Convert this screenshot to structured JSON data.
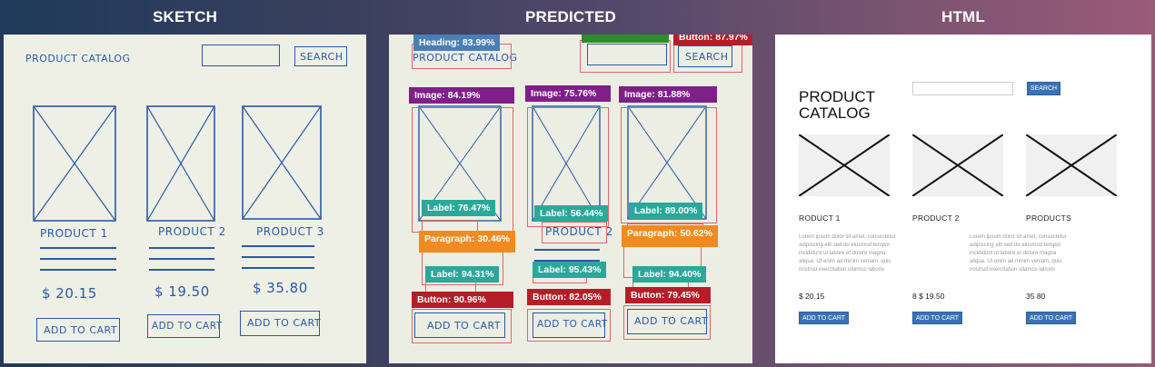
{
  "headers": {
    "sketch": "SKETCH",
    "predicted": "PREDICTED",
    "html": "HTML"
  },
  "sketch": {
    "title": "PRODUCT CATALOG",
    "search_button": "SEARCH",
    "products": [
      {
        "name": "PRODUCT 1",
        "price": "$ 20.15",
        "button": "ADD TO CART"
      },
      {
        "name": "PRODUCT 2",
        "price": "$ 19.50",
        "button": "ADD TO CART"
      },
      {
        "name": "PRODUCT 3",
        "price": "$ 35.80",
        "button": "ADD TO CART"
      }
    ]
  },
  "predicted": {
    "heading_tag": "Heading: 83.99%",
    "button_tag_top": "Button: 87.97%",
    "image_tags": [
      "Image: 84.19%",
      "Image: 75.76%",
      "Image: 81.88%"
    ],
    "label_tags": [
      "Label: 76.47%",
      "Label: 56.44%",
      "Label: 89.00%"
    ],
    "paragraph_tags": [
      "Paragraph: 30.46%",
      "Paragraph: 50.62%"
    ],
    "price_label_tags": [
      "Label: 94.31%",
      "Label: 95.43%",
      "Label: 94.40%"
    ],
    "button_tags": [
      "Button: 90.96%",
      "Button: 82.05%",
      "Button: 79.45%"
    ],
    "sketch_text": {
      "title": "PRODUCT CATALOG",
      "search": "SEARCH",
      "product2": "PRODUCT 2",
      "button": "ADD TO CART"
    }
  },
  "html_output": {
    "title": "PRODUCT CATALOG",
    "search_button": "SEARCH",
    "products": [
      {
        "name": "RODUCT 1",
        "price": "$ 20.15",
        "button": "ADD TO CART",
        "text": ""
      },
      {
        "name": "PRODUCT 2",
        "price": "8 $ 19.50",
        "button": "ADD TO CART",
        "text": "Lorem ipsum dolor sit amet, consectetur adipiscing elit sed do eiusmod tempor incididunt ut labore et dolore magna aliqua. Ut enim ad minim veniam, quis nostrud exercitation ullamco laboris"
      },
      {
        "name": "PRODUCTS",
        "price": "35 80",
        "button": "ADD TO CART",
        "text": "Lorem ipsum dolor sit amet, consectetur adipiscing elit sed do eiusmod tempor incididunt ut labore et dolore magna aliqua. Ut enim ad minim veniam, quis nostrud exercitation ullamco laboris"
      }
    ]
  },
  "colors": {
    "pen": "#2b58a8",
    "heading_tag": "#4a7fb5",
    "image_tag": "#7f1f8a",
    "label_tag": "#2aa89a",
    "paragraph_tag": "#f28a1e",
    "button_tag": "#b41e28",
    "input_tag": "#2e8b2e",
    "html_button": "#3a72b5"
  }
}
